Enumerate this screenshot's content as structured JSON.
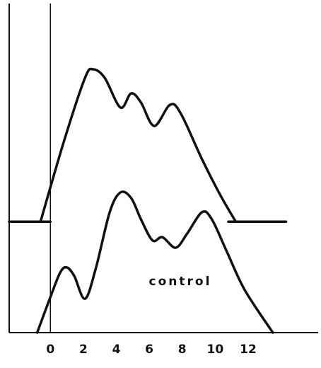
{
  "chart_data": {
    "type": "line",
    "annotations": [
      "control"
    ],
    "xlim": [
      -2.5,
      16.25
    ],
    "ylim": [
      0,
      100
    ],
    "xticks": [
      0,
      2,
      4,
      6,
      8,
      10,
      12
    ],
    "color": "#111111",
    "series": [
      {
        "x": [
          -0.6,
          0.82,
          2.1,
          2.6,
          3.3,
          4.25,
          4.9,
          5.5,
          6.3,
          7.25,
          7.9,
          9.2,
          10.3,
          11.25
        ],
        "values": [
          33.7,
          58.1,
          77.4,
          80,
          77.4,
          68.4,
          72.7,
          69.9,
          62.8,
          69.2,
          66.7,
          52.7,
          41.9,
          33.7
        ]
      },
      {
        "x": [
          -2.5,
          0
        ],
        "values": [
          33.7,
          33.7
        ]
      },
      {
        "x": [
          10.8,
          14.3
        ],
        "values": [
          33.7,
          33.7
        ]
      },
      {
        "x": [
          -0.8,
          0,
          0.6,
          1.0,
          1.45,
          2.1,
          2.75,
          3.6,
          4.25,
          4.9,
          5.5,
          6.2,
          6.8,
          7.6,
          8.3,
          9.2,
          9.8,
          10.7,
          11.8,
          13.5
        ],
        "values": [
          0,
          10.8,
          18.3,
          19.8,
          17.2,
          10.3,
          19.4,
          36.6,
          42.6,
          40.9,
          34.4,
          28,
          29,
          25.8,
          30.1,
          36.6,
          34.4,
          24.7,
          12.9,
          0
        ]
      }
    ]
  }
}
